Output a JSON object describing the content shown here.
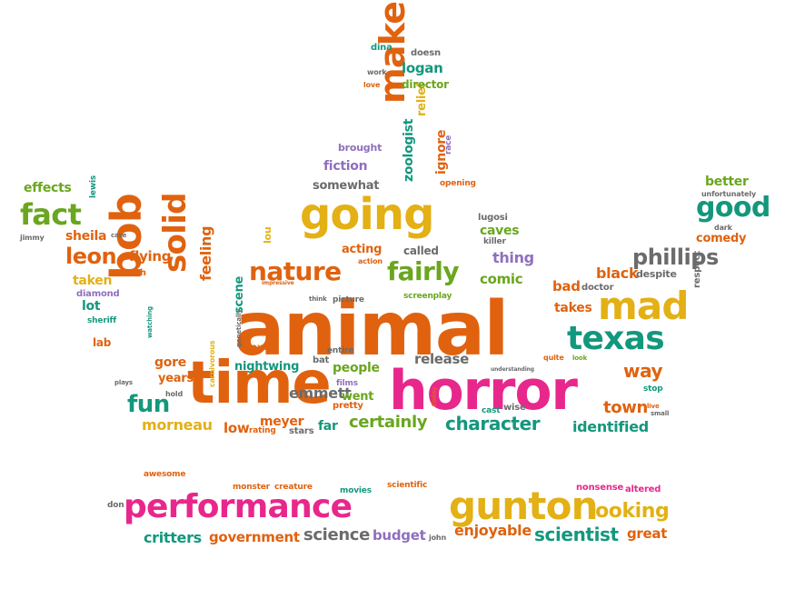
{
  "colors": {
    "orange": "#e0620f",
    "pink": "#e8278c",
    "yellow": "#e3b015",
    "green": "#6aa61f",
    "teal": "#13977d",
    "purple": "#8f6fbd",
    "gray": "#6b6b6b",
    "background": "#ffffff"
  },
  "words": [
    {
      "text": "animal",
      "color": "orange"
    },
    {
      "text": "horror",
      "color": "pink"
    },
    {
      "text": "time",
      "color": "orange"
    },
    {
      "text": "going",
      "color": "yellow"
    },
    {
      "text": "gunton",
      "color": "yellow"
    },
    {
      "text": "performance",
      "color": "pink"
    },
    {
      "text": "mad",
      "color": "yellow"
    },
    {
      "text": "make",
      "color": "orange"
    },
    {
      "text": "bob",
      "color": "orange"
    },
    {
      "text": "texas",
      "color": "teal"
    },
    {
      "text": "solid",
      "color": "orange"
    },
    {
      "text": "fact",
      "color": "green"
    },
    {
      "text": "good",
      "color": "teal"
    },
    {
      "text": "nature",
      "color": "orange"
    },
    {
      "text": "fairly",
      "color": "green"
    },
    {
      "text": "phillips",
      "color": "gray"
    },
    {
      "text": "leon",
      "color": "orange"
    },
    {
      "text": "fun",
      "color": "teal"
    },
    {
      "text": "looking",
      "color": "yellow"
    },
    {
      "text": "scientist",
      "color": "teal"
    },
    {
      "text": "character",
      "color": "teal"
    },
    {
      "text": "way",
      "color": "orange"
    },
    {
      "text": "town",
      "color": "orange"
    },
    {
      "text": "science",
      "color": "gray"
    },
    {
      "text": "enjoyable",
      "color": "orange"
    },
    {
      "text": "certainly",
      "color": "green"
    },
    {
      "text": "feeling",
      "color": "orange"
    },
    {
      "text": "emmett",
      "color": "gray"
    },
    {
      "text": "people",
      "color": "green"
    },
    {
      "text": "identified",
      "color": "teal"
    },
    {
      "text": "logan",
      "color": "teal"
    },
    {
      "text": "comic",
      "color": "green"
    },
    {
      "text": "thing",
      "color": "purple"
    },
    {
      "text": "caves",
      "color": "green"
    },
    {
      "text": "fiction",
      "color": "purple"
    },
    {
      "text": "sheila",
      "color": "orange"
    },
    {
      "text": "effects",
      "color": "green"
    },
    {
      "text": "better",
      "color": "green"
    },
    {
      "text": "comedy",
      "color": "orange"
    },
    {
      "text": "black",
      "color": "orange"
    },
    {
      "text": "bad",
      "color": "orange"
    },
    {
      "text": "takes",
      "color": "orange"
    },
    {
      "text": "flying",
      "color": "orange"
    },
    {
      "text": "taken",
      "color": "yellow"
    },
    {
      "text": "lot",
      "color": "teal"
    },
    {
      "text": "gore",
      "color": "orange"
    },
    {
      "text": "years",
      "color": "orange"
    },
    {
      "text": "morneau",
      "color": "yellow"
    },
    {
      "text": "low",
      "color": "orange"
    },
    {
      "text": "meyer",
      "color": "orange"
    },
    {
      "text": "far",
      "color": "teal"
    },
    {
      "text": "went",
      "color": "green"
    },
    {
      "text": "release",
      "color": "gray"
    },
    {
      "text": "nightwing",
      "color": "teal"
    },
    {
      "text": "critters",
      "color": "teal"
    },
    {
      "text": "government",
      "color": "orange"
    },
    {
      "text": "budget",
      "color": "purple"
    },
    {
      "text": "great",
      "color": "orange"
    },
    {
      "text": "zoologist",
      "color": "teal"
    },
    {
      "text": "relief",
      "color": "yellow"
    },
    {
      "text": "ignore",
      "color": "orange"
    },
    {
      "text": "somewhat",
      "color": "gray"
    },
    {
      "text": "acting",
      "color": "orange"
    },
    {
      "text": "called",
      "color": "gray"
    },
    {
      "text": "scene",
      "color": "teal"
    },
    {
      "text": "director",
      "color": "green"
    },
    {
      "text": "brought",
      "color": "purple"
    },
    {
      "text": "work",
      "color": "gray"
    },
    {
      "text": "love",
      "color": "orange"
    },
    {
      "text": "dina",
      "color": "teal"
    },
    {
      "text": "doesn",
      "color": "gray"
    },
    {
      "text": "opening",
      "color": "orange"
    },
    {
      "text": "race",
      "color": "purple"
    },
    {
      "text": "lou",
      "color": "yellow"
    },
    {
      "text": "lugosi",
      "color": "gray"
    },
    {
      "text": "killer",
      "color": "gray"
    },
    {
      "text": "jimmy",
      "color": "gray"
    },
    {
      "text": "lewis",
      "color": "teal"
    },
    {
      "text": "case",
      "color": "gray"
    },
    {
      "text": "watch",
      "color": "orange"
    },
    {
      "text": "diamond",
      "color": "purple"
    },
    {
      "text": "sheriff",
      "color": "teal"
    },
    {
      "text": "lab",
      "color": "orange"
    },
    {
      "text": "watching",
      "color": "teal"
    },
    {
      "text": "plays",
      "color": "gray"
    },
    {
      "text": "hold",
      "color": "gray"
    },
    {
      "text": "carnivorous",
      "color": "yellow"
    },
    {
      "text": "foxes",
      "color": "orange"
    },
    {
      "text": "bat",
      "color": "gray"
    },
    {
      "text": "entire",
      "color": "gray"
    },
    {
      "text": "films",
      "color": "purple"
    },
    {
      "text": "pretty",
      "color": "orange"
    },
    {
      "text": "wise",
      "color": "gray"
    },
    {
      "text": "cast",
      "color": "teal"
    },
    {
      "text": "today",
      "color": "orange"
    },
    {
      "text": "rating",
      "color": "orange"
    },
    {
      "text": "stars",
      "color": "gray"
    },
    {
      "text": "screenplay",
      "color": "green"
    },
    {
      "text": "picture",
      "color": "gray"
    },
    {
      "text": "think",
      "color": "gray"
    },
    {
      "text": "impressive",
      "color": "orange"
    },
    {
      "text": "action",
      "color": "orange"
    },
    {
      "text": "genetically",
      "color": "gray"
    },
    {
      "text": "doctor",
      "color": "gray"
    },
    {
      "text": "despite",
      "color": "gray"
    },
    {
      "text": "respect",
      "color": "gray"
    },
    {
      "text": "dark",
      "color": "gray"
    },
    {
      "text": "unfortunately",
      "color": "gray"
    },
    {
      "text": "quite",
      "color": "orange"
    },
    {
      "text": "look",
      "color": "green"
    },
    {
      "text": "understanding",
      "color": "gray"
    },
    {
      "text": "stop",
      "color": "teal"
    },
    {
      "text": "live",
      "color": "orange"
    },
    {
      "text": "small",
      "color": "gray"
    },
    {
      "text": "awesome",
      "color": "orange"
    },
    {
      "text": "monster",
      "color": "orange"
    },
    {
      "text": "creature",
      "color": "orange"
    },
    {
      "text": "movies",
      "color": "teal"
    },
    {
      "text": "scientific",
      "color": "orange"
    },
    {
      "text": "nonsense",
      "color": "pink"
    },
    {
      "text": "altered",
      "color": "pink"
    },
    {
      "text": "don",
      "color": "gray"
    },
    {
      "text": "john",
      "color": "gray"
    }
  ]
}
